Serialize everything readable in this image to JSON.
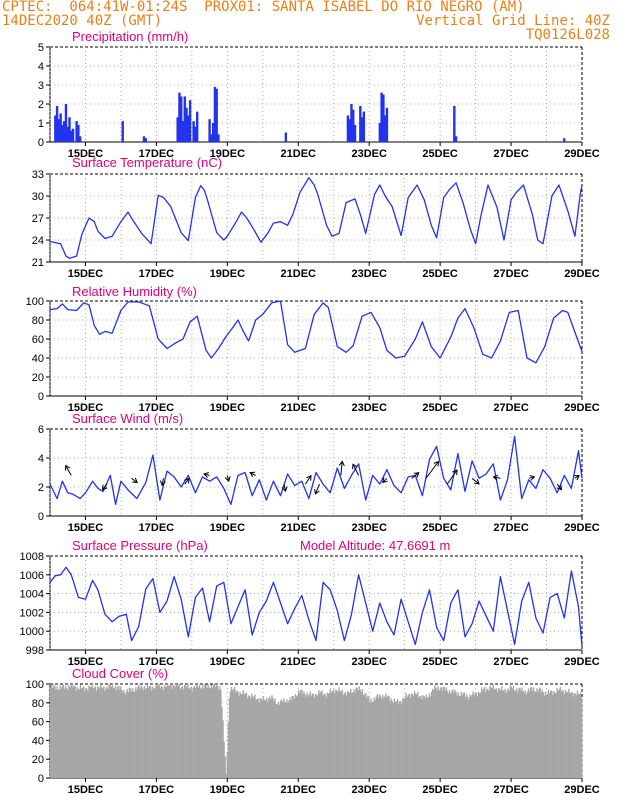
{
  "header": {
    "line1_left": "CPTEC:  064:41W-01:24S  PROX01: SANTA ISABEL DO RIO NEGRO (AM)",
    "line2_left": "14DEC2020 40Z (GMT)",
    "line2_right": "Vertical Grid Line: 40Z",
    "line3_right": "TQ0126L028"
  },
  "colors": {
    "header": "#e8801a",
    "title": "#e0007a",
    "line": "#2233ee",
    "cloud": "#a6a6a6",
    "grid": "#9a9a9a"
  },
  "x_axis": {
    "range_days": [
      14.0,
      29.0
    ],
    "tick_labels": [
      "15DEC",
      "17DEC",
      "19DEC",
      "21DEC",
      "23DEC",
      "25DEC",
      "27DEC",
      "29DEC"
    ],
    "tick_days": [
      15,
      17,
      19,
      21,
      23,
      25,
      27,
      29
    ]
  },
  "chart_data": [
    {
      "id": "precip",
      "type": "bar",
      "title": "Precipitation (mm/h)",
      "ylim": [
        0,
        5
      ],
      "yticks": [
        0,
        1,
        2,
        3,
        4,
        5
      ],
      "x_unit": "day of December 2020",
      "x": [
        14.15,
        14.2,
        14.25,
        14.3,
        14.35,
        14.4,
        14.45,
        14.5,
        14.55,
        14.6,
        14.65,
        14.75,
        14.8,
        14.85,
        16.05,
        16.65,
        16.7,
        17.6,
        17.65,
        17.7,
        17.75,
        17.8,
        17.85,
        17.9,
        17.95,
        18.05,
        18.1,
        18.15,
        18.5,
        18.55,
        18.6,
        18.65,
        18.7,
        18.75,
        20.65,
        22.4,
        22.45,
        22.5,
        22.55,
        22.6,
        22.75,
        22.8,
        22.85,
        23.3,
        23.35,
        23.4,
        23.45,
        23.5,
        25.4,
        25.45,
        28.5
      ],
      "values": [
        1.4,
        1.9,
        1.2,
        1.5,
        0.9,
        1.1,
        2.0,
        0.8,
        1.3,
        0.6,
        0.7,
        1.1,
        0.9,
        0.3,
        1.1,
        0.3,
        0.2,
        1.3,
        2.6,
        2.4,
        1.1,
        2.4,
        1.8,
        1.4,
        2.2,
        1.1,
        0.8,
        1.6,
        1.2,
        0.4,
        1.0,
        2.9,
        2.8,
        0.4,
        0.5,
        1.4,
        1.2,
        2.0,
        1.7,
        0.9,
        1.9,
        1.3,
        1.6,
        1.0,
        2.6,
        2.5,
        1.4,
        1.8,
        1.9,
        0.3,
        0.2
      ]
    },
    {
      "id": "temp",
      "type": "line",
      "title": "Surface Temperature (nC)",
      "ylim": [
        21,
        33
      ],
      "yticks": [
        21,
        24,
        27,
        30,
        33
      ],
      "x_unit": "day of December 2020",
      "x": [
        14.0,
        14.3,
        14.45,
        14.55,
        14.75,
        14.9,
        15.1,
        15.25,
        15.35,
        15.55,
        15.75,
        16.0,
        16.2,
        16.35,
        16.6,
        16.85,
        17.05,
        17.2,
        17.4,
        17.7,
        17.9,
        18.1,
        18.25,
        18.35,
        18.45,
        18.7,
        18.9,
        19.0,
        19.25,
        19.4,
        19.55,
        19.75,
        19.95,
        20.15,
        20.3,
        20.5,
        20.7,
        20.85,
        21.05,
        21.3,
        21.45,
        21.55,
        21.8,
        21.95,
        22.15,
        22.35,
        22.6,
        22.75,
        22.9,
        23.15,
        23.3,
        23.45,
        23.65,
        23.9,
        24.1,
        24.35,
        24.55,
        24.75,
        24.9,
        25.1,
        25.25,
        25.45,
        25.65,
        25.85,
        26.0,
        26.15,
        26.35,
        26.6,
        26.8,
        27.0,
        27.15,
        27.35,
        27.6,
        27.75,
        27.9,
        28.15,
        28.35,
        28.6,
        28.8,
        28.95,
        29.0
      ],
      "values": [
        23.8,
        23.5,
        21.8,
        21.5,
        21.8,
        24.8,
        27.0,
        26.5,
        25.2,
        24.2,
        24.5,
        26.5,
        27.8,
        26.6,
        24.8,
        23.5,
        30.1,
        29.8,
        28.6,
        25.0,
        23.9,
        29.8,
        31.4,
        30.8,
        29.3,
        25.0,
        24.0,
        24.5,
        26.5,
        27.8,
        27.0,
        25.4,
        23.7,
        25.0,
        26.3,
        26.5,
        26.0,
        27.5,
        30.5,
        32.5,
        31.5,
        30.2,
        26.0,
        24.5,
        24.9,
        29.1,
        29.6,
        27.5,
        24.9,
        30.2,
        31.5,
        30.0,
        28.5,
        24.6,
        29.8,
        31.5,
        29.5,
        26.0,
        24.3,
        29.8,
        30.8,
        31.8,
        29.0,
        25.5,
        23.5,
        27.3,
        31.5,
        28.5,
        24.0,
        29.5,
        30.5,
        31.5,
        27.5,
        24.0,
        23.5,
        30.0,
        31.5,
        28.0,
        24.5,
        30.2,
        31.5
      ]
    },
    {
      "id": "rh",
      "type": "line",
      "title": "Relative Humidity (%)",
      "ylim": [
        0,
        100
      ],
      "yticks": [
        0,
        20,
        40,
        60,
        80,
        100
      ],
      "x_unit": "day of December 2020",
      "x": [
        14.0,
        14.2,
        14.35,
        14.5,
        14.75,
        14.95,
        15.1,
        15.25,
        15.4,
        15.55,
        15.75,
        16.0,
        16.2,
        16.5,
        16.8,
        17.05,
        17.3,
        17.55,
        17.75,
        17.95,
        18.15,
        18.4,
        18.55,
        18.75,
        18.95,
        19.15,
        19.3,
        19.45,
        19.6,
        19.8,
        20.0,
        20.25,
        20.5,
        20.7,
        20.9,
        21.2,
        21.45,
        21.7,
        21.85,
        22.1,
        22.35,
        22.55,
        22.8,
        23.05,
        23.3,
        23.5,
        23.75,
        24.0,
        24.3,
        24.5,
        24.75,
        25.0,
        25.3,
        25.5,
        25.7,
        25.95,
        26.2,
        26.45,
        26.7,
        26.95,
        27.2,
        27.45,
        27.7,
        27.95,
        28.2,
        28.45,
        28.6,
        28.85,
        29.0
      ],
      "values": [
        91,
        92,
        97,
        91,
        90,
        98,
        96,
        74,
        65,
        68,
        66,
        90,
        99,
        99,
        95,
        60,
        50,
        56,
        60,
        78,
        84,
        48,
        40,
        50,
        62,
        72,
        80,
        68,
        58,
        80,
        86,
        98,
        100,
        54,
        46,
        50,
        86,
        98,
        93,
        52,
        46,
        53,
        84,
        88,
        72,
        48,
        40,
        42,
        60,
        78,
        52,
        40,
        62,
        82,
        92,
        72,
        44,
        40,
        58,
        88,
        90,
        40,
        35,
        52,
        82,
        90,
        88,
        62,
        47
      ]
    },
    {
      "id": "wind",
      "type": "line",
      "title": "Surface Wind (m/s)",
      "ylim": [
        0,
        6
      ],
      "yticks": [
        0,
        2,
        4,
        6
      ],
      "x_unit": "day of December 2020",
      "x": [
        14.0,
        14.2,
        14.35,
        14.5,
        14.65,
        14.85,
        15.0,
        15.2,
        15.35,
        15.5,
        15.7,
        15.85,
        16.0,
        16.2,
        16.45,
        16.7,
        16.9,
        17.1,
        17.3,
        17.5,
        17.7,
        17.9,
        18.1,
        18.3,
        18.5,
        18.7,
        18.9,
        19.1,
        19.3,
        19.5,
        19.7,
        19.9,
        20.1,
        20.3,
        20.5,
        20.7,
        20.9,
        21.1,
        21.3,
        21.5,
        21.7,
        21.9,
        22.1,
        22.3,
        22.5,
        22.7,
        22.9,
        23.1,
        23.3,
        23.5,
        23.7,
        23.9,
        24.1,
        24.3,
        24.5,
        24.7,
        24.9,
        25.1,
        25.3,
        25.5,
        25.7,
        25.9,
        26.1,
        26.3,
        26.5,
        26.7,
        26.9,
        27.1,
        27.3,
        27.5,
        27.7,
        27.9,
        28.1,
        28.3,
        28.5,
        28.7,
        28.9,
        29.0
      ],
      "values": [
        2.2,
        1.2,
        2.4,
        1.6,
        1.5,
        1.2,
        1.6,
        2.4,
        1.9,
        1.7,
        2.8,
        0.8,
        2.4,
        1.8,
        1.2,
        2.3,
        4.2,
        1.1,
        3.1,
        2.7,
        2.0,
        2.8,
        1.6,
        2.7,
        2.4,
        2.7,
        1.9,
        0.8,
        2.8,
        3.0,
        1.4,
        2.5,
        1.1,
        2.4,
        1.4,
        2.9,
        2.1,
        2.4,
        1.2,
        3.0,
        2.2,
        1.6,
        3.3,
        1.9,
        2.8,
        3.6,
        1.1,
        2.8,
        2.2,
        3.2,
        2.1,
        1.6,
        2.7,
        2.8,
        1.4,
        3.9,
        4.8,
        2.6,
        1.8,
        4.3,
        1.7,
        3.8,
        2.6,
        2.9,
        3.6,
        1.1,
        2.5,
        5.5,
        1.2,
        2.5,
        1.9,
        3.2,
        2.6,
        1.6,
        2.8,
        1.9,
        4.5,
        2.6
      ],
      "vectors": [
        {
          "x": 14.6,
          "y": 2.8,
          "dx": -0.4,
          "dy": 0.7
        },
        {
          "x": 15.6,
          "y": 2.2,
          "dx": -0.3,
          "dy": -0.4
        },
        {
          "x": 16.3,
          "y": 2.6,
          "dx": 0.4,
          "dy": -0.3
        },
        {
          "x": 17.2,
          "y": 2.6,
          "dx": -0.1,
          "dy": -0.5
        },
        {
          "x": 17.8,
          "y": 2.2,
          "dx": 0.3,
          "dy": 0.4
        },
        {
          "x": 18.5,
          "y": 2.8,
          "dx": -0.4,
          "dy": 0.1
        },
        {
          "x": 19.0,
          "y": 2.8,
          "dx": 0.1,
          "dy": -0.4
        },
        {
          "x": 19.8,
          "y": 2.8,
          "dx": -0.4,
          "dy": 0.2
        },
        {
          "x": 20.6,
          "y": 2.2,
          "dx": 0.1,
          "dy": -0.5
        },
        {
          "x": 21.2,
          "y": 2.2,
          "dx": 0.4,
          "dy": 0.6
        },
        {
          "x": 21.6,
          "y": 2.2,
          "dx": -0.3,
          "dy": -0.7
        },
        {
          "x": 22.2,
          "y": 2.8,
          "dx": 0.1,
          "dy": 1.0
        },
        {
          "x": 22.7,
          "y": 2.8,
          "dx": -0.4,
          "dy": 0.8
        },
        {
          "x": 23.5,
          "y": 2.6,
          "dx": -0.3,
          "dy": -0.3
        },
        {
          "x": 24.2,
          "y": 2.6,
          "dx": 0.5,
          "dy": 0.4
        },
        {
          "x": 24.6,
          "y": 2.6,
          "dx": 0.9,
          "dy": 1.2
        },
        {
          "x": 25.2,
          "y": 2.2,
          "dx": 0.7,
          "dy": 1.0
        },
        {
          "x": 25.9,
          "y": 2.6,
          "dx": 0.5,
          "dy": -0.4
        },
        {
          "x": 26.7,
          "y": 2.6,
          "dx": -0.5,
          "dy": 0.1
        },
        {
          "x": 27.5,
          "y": 2.6,
          "dx": 0.4,
          "dy": 0.1
        },
        {
          "x": 28.3,
          "y": 2.2,
          "dx": 0.3,
          "dy": -0.4
        },
        {
          "x": 28.8,
          "y": 2.6,
          "dx": 0.3,
          "dy": 0.2
        }
      ]
    },
    {
      "id": "pres",
      "type": "line",
      "title": "Surface Pressure (hPa)",
      "annotation": "Model Altitude: 47.6691  m",
      "ylim": [
        998,
        1008
      ],
      "yticks": [
        998,
        1000,
        1002,
        1004,
        1006,
        1008
      ],
      "x_unit": "day of December 2020",
      "x": [
        14.0,
        14.15,
        14.3,
        14.45,
        14.6,
        14.8,
        15.0,
        15.2,
        15.35,
        15.55,
        15.75,
        15.95,
        16.15,
        16.3,
        16.5,
        16.7,
        16.9,
        17.1,
        17.3,
        17.5,
        17.7,
        17.9,
        18.1,
        18.3,
        18.5,
        18.7,
        18.9,
        19.1,
        19.3,
        19.5,
        19.7,
        19.9,
        20.1,
        20.3,
        20.5,
        20.7,
        20.9,
        21.1,
        21.3,
        21.5,
        21.7,
        21.9,
        22.1,
        22.3,
        22.5,
        22.7,
        22.9,
        23.1,
        23.3,
        23.5,
        23.7,
        23.9,
        24.1,
        24.3,
        24.5,
        24.7,
        24.9,
        25.1,
        25.3,
        25.5,
        25.7,
        25.9,
        26.1,
        26.3,
        26.5,
        26.7,
        26.9,
        27.1,
        27.3,
        27.5,
        27.7,
        27.9,
        28.1,
        28.3,
        28.5,
        28.7,
        28.9,
        29.0
      ],
      "values": [
        1005.2,
        1005.9,
        1006.0,
        1006.8,
        1006.0,
        1003.6,
        1003.4,
        1005.4,
        1004.4,
        1001.8,
        1001.0,
        1001.6,
        1001.8,
        999.0,
        1000.5,
        1004.5,
        1005.6,
        1002.0,
        1003.2,
        1005.8,
        1003.4,
        999.4,
        1003.6,
        1004.6,
        1001.0,
        1004.8,
        1005.2,
        1000.8,
        1002.6,
        1004.4,
        999.6,
        1002.0,
        1003.2,
        1005.2,
        1003.0,
        1000.8,
        1002.4,
        1003.8,
        1001.2,
        999.0,
        1005.2,
        1004.4,
        1002.2,
        999.0,
        1001.8,
        1006.0,
        1003.0,
        1000.0,
        1003.0,
        1001.0,
        999.6,
        1003.4,
        1001.0,
        998.6,
        1002.0,
        1004.4,
        1000.4,
        999.0,
        1003.0,
        1004.4,
        999.4,
        1000.8,
        1003.2,
        1001.6,
        1000.0,
        1005.8,
        1002.2,
        998.6,
        1003.2,
        1005.2,
        1001.4,
        999.8,
        1003.6,
        1004.0,
        1001.4,
        1006.4,
        1002.6,
        998.4
      ]
    },
    {
      "id": "cloud",
      "type": "area",
      "title": "Cloud Cover (%)",
      "ylim": [
        0,
        100
      ],
      "yticks": [
        0,
        20,
        40,
        60,
        80,
        100
      ],
      "x_unit": "day of December 2020",
      "x": [
        14.0,
        14.3,
        14.6,
        14.9,
        15.2,
        15.5,
        15.8,
        16.1,
        16.4,
        16.6,
        16.8,
        17.0,
        17.2,
        17.4,
        17.6,
        17.8,
        18.0,
        18.2,
        18.4,
        18.6,
        18.8,
        18.95,
        19.05,
        19.2,
        19.4,
        19.6,
        19.8,
        20.0,
        20.2,
        20.4,
        20.6,
        20.8,
        21.0,
        21.2,
        21.4,
        21.6,
        21.8,
        22.0,
        22.2,
        22.4,
        22.6,
        22.8,
        23.0,
        23.2,
        23.4,
        23.6,
        23.8,
        24.0,
        24.2,
        24.4,
        24.6,
        24.8,
        25.0,
        25.2,
        25.4,
        25.6,
        25.8,
        26.0,
        26.2,
        26.4,
        26.6,
        26.8,
        27.0,
        27.2,
        27.4,
        27.6,
        27.8,
        28.0,
        28.2,
        28.4,
        28.6,
        28.8,
        29.0
      ],
      "values": [
        97,
        96,
        98,
        95,
        97,
        96,
        98,
        92,
        95,
        97,
        96,
        98,
        97,
        99,
        98,
        97,
        96,
        98,
        97,
        99,
        96,
        2,
        96,
        93,
        90,
        88,
        85,
        83,
        86,
        80,
        82,
        84,
        92,
        90,
        88,
        91,
        89,
        94,
        92,
        90,
        95,
        93,
        82,
        86,
        88,
        84,
        80,
        86,
        90,
        88,
        85,
        95,
        96,
        93,
        91,
        89,
        87,
        90,
        94,
        96,
        95,
        93,
        96,
        94,
        92,
        95,
        93,
        90,
        92,
        94,
        91,
        90,
        88
      ]
    }
  ]
}
